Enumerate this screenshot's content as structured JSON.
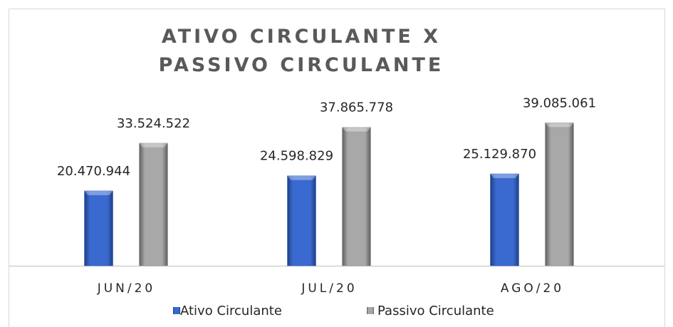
{
  "chart_data": {
    "type": "bar",
    "title": "ATIVO CIRCULANTE X PASSIVO CIRCULANTE",
    "categories": [
      "JUN/20",
      "JUL/20",
      "AGO/20"
    ],
    "series": [
      {
        "name": "Ativo Circulante",
        "color": "#2f5fbf",
        "values": [
          20470944,
          24598829,
          25129870
        ],
        "value_labels": [
          "20.470.944",
          "24.598.829",
          "25.129.870"
        ]
      },
      {
        "name": "Passivo Circulante",
        "color": "#9a9a9a",
        "values": [
          33524522,
          37865778,
          39085061
        ],
        "value_labels": [
          "33.524.522",
          "37.865.778",
          "39.085.061"
        ]
      }
    ],
    "ylim": [
      0,
      45000000
    ],
    "legend": "bottom"
  }
}
